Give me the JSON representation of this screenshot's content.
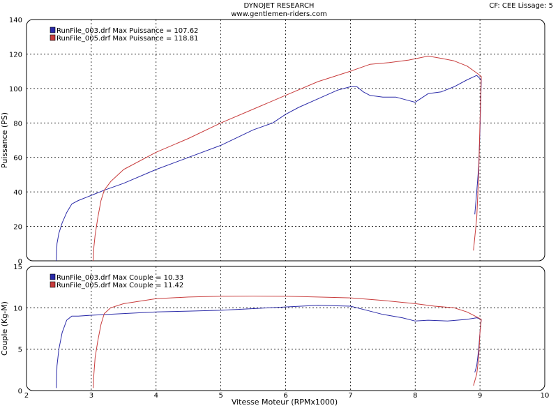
{
  "header": {
    "title": "DYNOJET RESEARCH",
    "subtitle": "www.gentlemen-riders.com",
    "info": "CF: CEE  Lissage: 5"
  },
  "colors": {
    "run1": "#2a2aa8",
    "run2": "#c83c3c",
    "grid": "#000000",
    "panel": "#ffffff"
  },
  "chart_data": [
    {
      "type": "line",
      "ylabel": "Puissance (PS)",
      "xlabel": "Vitesse Moteur (RPMx1000)",
      "xlim": [
        2,
        10
      ],
      "ylim": [
        0,
        140
      ],
      "yticks": [
        0,
        20,
        40,
        60,
        80,
        100,
        120,
        140
      ],
      "xticks": [
        2,
        3,
        4,
        5,
        6,
        7,
        8,
        9,
        10
      ],
      "grid": true,
      "legend_position": "top-left",
      "series": [
        {
          "name": "RunFile_003.drf Max Puissance = 107.62",
          "x": [
            2.46,
            2.47,
            2.5,
            2.55,
            2.62,
            2.7,
            2.8,
            3.0,
            3.2,
            3.5,
            4.0,
            4.5,
            5.0,
            5.5,
            5.8,
            6.0,
            6.2,
            6.5,
            6.8,
            7.0,
            7.1,
            7.2,
            7.3,
            7.5,
            7.7,
            7.9,
            8.0,
            8.2,
            8.4,
            8.6,
            8.8,
            8.95,
            9.02,
            9.0,
            8.98,
            8.95,
            8.92
          ],
          "y": [
            0,
            10,
            16,
            22,
            28,
            33,
            35,
            38,
            41,
            45,
            53,
            60,
            67,
            76,
            80,
            85,
            89,
            94,
            99,
            101,
            101,
            98,
            96,
            95,
            95,
            93,
            92,
            97,
            98,
            101,
            105,
            107.6,
            105,
            75,
            55,
            40,
            27
          ]
        },
        {
          "name": "RunFile_005.drf Max Puissance = 118.81",
          "x": [
            3.03,
            3.04,
            3.06,
            3.1,
            3.15,
            3.2,
            3.3,
            3.5,
            4.0,
            4.5,
            5.0,
            5.5,
            6.0,
            6.5,
            7.0,
            7.3,
            7.6,
            7.9,
            8.1,
            8.2,
            8.4,
            8.6,
            8.8,
            8.95,
            9.02,
            9.0,
            8.98,
            8.95,
            8.9
          ],
          "y": [
            0,
            8,
            15,
            25,
            35,
            41,
            46,
            53,
            63,
            71,
            80,
            88,
            96,
            104,
            110,
            114,
            115,
            116.5,
            118,
            118.8,
            117.5,
            116,
            113,
            109,
            107,
            80,
            50,
            25,
            6
          ]
        }
      ]
    },
    {
      "type": "line",
      "ylabel": "Couple (Kg-M)",
      "xlabel": "Vitesse Moteur (RPMx1000)",
      "xlim": [
        2,
        10
      ],
      "ylim": [
        0,
        15
      ],
      "yticks": [
        0,
        5,
        10,
        15
      ],
      "xticks": [
        2,
        3,
        4,
        5,
        6,
        7,
        8,
        9,
        10
      ],
      "grid": true,
      "legend_position": "top-left",
      "series": [
        {
          "name": "RunFile_003.drf Max Couple = 10.33",
          "x": [
            2.46,
            2.47,
            2.5,
            2.55,
            2.62,
            2.7,
            2.8,
            3.0,
            3.5,
            4.0,
            4.5,
            5.0,
            5.5,
            6.0,
            6.5,
            7.0,
            7.2,
            7.5,
            7.8,
            8.0,
            8.2,
            8.5,
            8.8,
            8.95,
            9.02,
            9.0,
            8.98,
            8.95,
            8.92
          ],
          "y": [
            0.3,
            3,
            5,
            7,
            8.5,
            9.0,
            9.0,
            9.1,
            9.3,
            9.5,
            9.6,
            9.7,
            9.9,
            10.1,
            10.3,
            10.2,
            9.8,
            9.2,
            8.8,
            8.4,
            8.5,
            8.4,
            8.6,
            8.8,
            8.6,
            7,
            5,
            3,
            2.2
          ]
        },
        {
          "name": "RunFile_005.drf Max Couple = 11.42",
          "x": [
            3.03,
            3.04,
            3.06,
            3.1,
            3.15,
            3.2,
            3.3,
            3.5,
            4.0,
            4.5,
            5.0,
            5.5,
            6.0,
            6.5,
            7.0,
            7.5,
            8.0,
            8.3,
            8.6,
            8.8,
            8.95,
            9.02,
            9.0,
            8.98,
            8.95,
            8.9
          ],
          "y": [
            0.3,
            2,
            4,
            6,
            8,
            9.3,
            10.0,
            10.5,
            11.1,
            11.3,
            11.4,
            11.42,
            11.4,
            11.3,
            11.2,
            10.9,
            10.5,
            10.2,
            10.0,
            9.5,
            8.9,
            8.6,
            7,
            4,
            2,
            0.6
          ]
        }
      ]
    }
  ]
}
